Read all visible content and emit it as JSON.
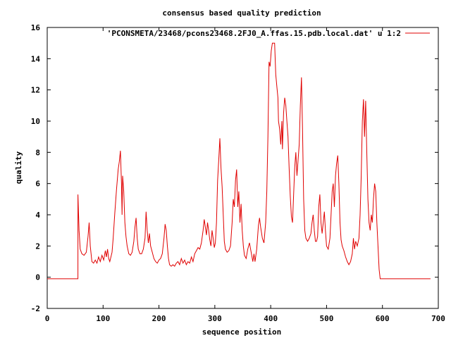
{
  "chart_data": {
    "type": "line",
    "title": "consensus based quality prediction",
    "xlabel": "sequence position",
    "ylabel": "quality",
    "xlim": [
      0,
      700
    ],
    "ylim": [
      -2,
      16
    ],
    "xticks": [
      0,
      100,
      200,
      300,
      400,
      500,
      600,
      700
    ],
    "yticks": [
      -2,
      0,
      2,
      4,
      6,
      8,
      10,
      12,
      14,
      16
    ],
    "legend_position": "top-right",
    "series": [
      {
        "name": "'PCONSMETA/23468/pcons23468.2FJ0_A.ffas.15.pdb.local.dat' u 1:2",
        "color": "#e00000",
        "points": [
          [
            0,
            -0.1
          ],
          [
            55,
            -0.1
          ],
          [
            55,
            5.3
          ],
          [
            57,
            3.0
          ],
          [
            59,
            1.8
          ],
          [
            62,
            1.5
          ],
          [
            66,
            1.4
          ],
          [
            70,
            1.6
          ],
          [
            73,
            2.6
          ],
          [
            75,
            3.5
          ],
          [
            77,
            2.0
          ],
          [
            80,
            1.0
          ],
          [
            83,
            0.9
          ],
          [
            86,
            1.1
          ],
          [
            89,
            0.9
          ],
          [
            92,
            1.3
          ],
          [
            95,
            1.0
          ],
          [
            98,
            1.4
          ],
          [
            101,
            1.1
          ],
          [
            104,
            1.7
          ],
          [
            106,
            1.3
          ],
          [
            108,
            1.8
          ],
          [
            110,
            1.2
          ],
          [
            112,
            1.0
          ],
          [
            114,
            1.3
          ],
          [
            116,
            1.6
          ],
          [
            118,
            2.5
          ],
          [
            121,
            4.1
          ],
          [
            124,
            5.6
          ],
          [
            127,
            6.9
          ],
          [
            129,
            7.4
          ],
          [
            131,
            8.1
          ],
          [
            133,
            6.0
          ],
          [
            134,
            4.0
          ],
          [
            135,
            6.5
          ],
          [
            137,
            5.5
          ],
          [
            139,
            3.5
          ],
          [
            141,
            2.6
          ],
          [
            143,
            2.0
          ],
          [
            146,
            1.5
          ],
          [
            149,
            1.4
          ],
          [
            152,
            1.6
          ],
          [
            155,
            2.3
          ],
          [
            157,
            3.2
          ],
          [
            159,
            3.8
          ],
          [
            161,
            2.5
          ],
          [
            163,
            1.8
          ],
          [
            166,
            1.5
          ],
          [
            169,
            1.5
          ],
          [
            172,
            1.8
          ],
          [
            175,
            2.5
          ],
          [
            177,
            4.2
          ],
          [
            179,
            3.0
          ],
          [
            181,
            2.2
          ],
          [
            183,
            2.8
          ],
          [
            185,
            2.0
          ],
          [
            188,
            1.6
          ],
          [
            191,
            1.2
          ],
          [
            194,
            1.0
          ],
          [
            197,
            0.9
          ],
          [
            200,
            1.1
          ],
          [
            203,
            1.2
          ],
          [
            206,
            1.5
          ],
          [
            209,
            2.5
          ],
          [
            211,
            3.4
          ],
          [
            213,
            3.0
          ],
          [
            215,
            2.0
          ],
          [
            217,
            1.2
          ],
          [
            219,
            0.8
          ],
          [
            222,
            0.7
          ],
          [
            225,
            0.8
          ],
          [
            228,
            0.7
          ],
          [
            231,
            0.9
          ],
          [
            234,
            1.0
          ],
          [
            237,
            0.8
          ],
          [
            240,
            1.2
          ],
          [
            243,
            0.9
          ],
          [
            246,
            1.1
          ],
          [
            249,
            0.8
          ],
          [
            252,
            1.0
          ],
          [
            255,
            0.9
          ],
          [
            258,
            1.3
          ],
          [
            261,
            1.0
          ],
          [
            264,
            1.5
          ],
          [
            267,
            1.7
          ],
          [
            270,
            1.9
          ],
          [
            273,
            1.8
          ],
          [
            276,
            2.2
          ],
          [
            279,
            3.0
          ],
          [
            281,
            3.7
          ],
          [
            283,
            3.2
          ],
          [
            285,
            2.7
          ],
          [
            287,
            3.5
          ],
          [
            289,
            3.0
          ],
          [
            291,
            2.4
          ],
          [
            293,
            2.0
          ],
          [
            295,
            3.0
          ],
          [
            297,
            2.5
          ],
          [
            299,
            1.9
          ],
          [
            301,
            2.2
          ],
          [
            303,
            3.5
          ],
          [
            305,
            6.2
          ],
          [
            307,
            7.5
          ],
          [
            309,
            8.9
          ],
          [
            311,
            7.0
          ],
          [
            313,
            5.8
          ],
          [
            315,
            4.0
          ],
          [
            317,
            2.3
          ],
          [
            319,
            1.8
          ],
          [
            322,
            1.6
          ],
          [
            325,
            1.7
          ],
          [
            328,
            2.0
          ],
          [
            331,
            3.5
          ],
          [
            333,
            5.0
          ],
          [
            335,
            4.5
          ],
          [
            337,
            6.2
          ],
          [
            339,
            6.9
          ],
          [
            341,
            4.5
          ],
          [
            343,
            5.5
          ],
          [
            345,
            3.5
          ],
          [
            347,
            4.7
          ],
          [
            349,
            3.0
          ],
          [
            351,
            2.0
          ],
          [
            353,
            1.4
          ],
          [
            356,
            1.2
          ],
          [
            359,
            1.8
          ],
          [
            362,
            2.2
          ],
          [
            365,
            1.6
          ],
          [
            368,
            1.0
          ],
          [
            370,
            1.5
          ],
          [
            372,
            1.0
          ],
          [
            375,
            1.8
          ],
          [
            378,
            3.3
          ],
          [
            380,
            3.8
          ],
          [
            382,
            3.2
          ],
          [
            385,
            2.5
          ],
          [
            388,
            2.2
          ],
          [
            391,
            3.5
          ],
          [
            393,
            5.5
          ],
          [
            395,
            9.0
          ],
          [
            397,
            13.8
          ],
          [
            399,
            13.5
          ],
          [
            401,
            14.5
          ],
          [
            403,
            15.0
          ],
          [
            405,
            15.0
          ],
          [
            407,
            15.0
          ],
          [
            409,
            13.0
          ],
          [
            411,
            12.2
          ],
          [
            413,
            11.5
          ],
          [
            414,
            10.0
          ],
          [
            416,
            9.5
          ],
          [
            418,
            8.5
          ],
          [
            420,
            10.0
          ],
          [
            421,
            8.2
          ],
          [
            423,
            10.5
          ],
          [
            425,
            11.5
          ],
          [
            427,
            11.0
          ],
          [
            429,
            10.0
          ],
          [
            431,
            9.0
          ],
          [
            433,
            7.0
          ],
          [
            435,
            5.2
          ],
          [
            437,
            3.9
          ],
          [
            439,
            3.5
          ],
          [
            441,
            5.2
          ],
          [
            443,
            7.0
          ],
          [
            445,
            8.0
          ],
          [
            447,
            6.5
          ],
          [
            449,
            7.5
          ],
          [
            451,
            8.5
          ],
          [
            453,
            11.0
          ],
          [
            455,
            12.8
          ],
          [
            457,
            9.5
          ],
          [
            459,
            5.0
          ],
          [
            461,
            3.0
          ],
          [
            463,
            2.5
          ],
          [
            466,
            2.3
          ],
          [
            469,
            2.5
          ],
          [
            472,
            2.8
          ],
          [
            474,
            3.5
          ],
          [
            476,
            4.0
          ],
          [
            478,
            3.0
          ],
          [
            480,
            2.3
          ],
          [
            482,
            2.3
          ],
          [
            484,
            2.6
          ],
          [
            486,
            4.5
          ],
          [
            488,
            5.3
          ],
          [
            490,
            3.5
          ],
          [
            492,
            2.8
          ],
          [
            494,
            3.5
          ],
          [
            496,
            4.2
          ],
          [
            498,
            3.0
          ],
          [
            500,
            2.0
          ],
          [
            503,
            1.8
          ],
          [
            506,
            2.5
          ],
          [
            508,
            4.0
          ],
          [
            510,
            5.5
          ],
          [
            512,
            6.0
          ],
          [
            514,
            4.5
          ],
          [
            516,
            6.5
          ],
          [
            518,
            7.3
          ],
          [
            520,
            7.8
          ],
          [
            522,
            6.0
          ],
          [
            524,
            3.5
          ],
          [
            526,
            2.4
          ],
          [
            528,
            2.0
          ],
          [
            531,
            1.7
          ],
          [
            534,
            1.3
          ],
          [
            537,
            1.0
          ],
          [
            540,
            0.8
          ],
          [
            543,
            1.0
          ],
          [
            546,
            1.5
          ],
          [
            548,
            2.5
          ],
          [
            550,
            1.8
          ],
          [
            552,
            2.3
          ],
          [
            555,
            2.0
          ],
          [
            558,
            2.5
          ],
          [
            560,
            4.0
          ],
          [
            562,
            6.5
          ],
          [
            564,
            10.0
          ],
          [
            566,
            11.4
          ],
          [
            568,
            9.0
          ],
          [
            570,
            11.3
          ],
          [
            572,
            8.0
          ],
          [
            574,
            5.0
          ],
          [
            576,
            3.5
          ],
          [
            578,
            3.0
          ],
          [
            580,
            4.0
          ],
          [
            582,
            3.5
          ],
          [
            584,
            5.0
          ],
          [
            586,
            6.0
          ],
          [
            588,
            5.5
          ],
          [
            590,
            3.5
          ],
          [
            592,
            2.0
          ],
          [
            594,
            0.5
          ],
          [
            596,
            -0.1
          ],
          [
            686,
            -0.1
          ]
        ]
      }
    ]
  }
}
